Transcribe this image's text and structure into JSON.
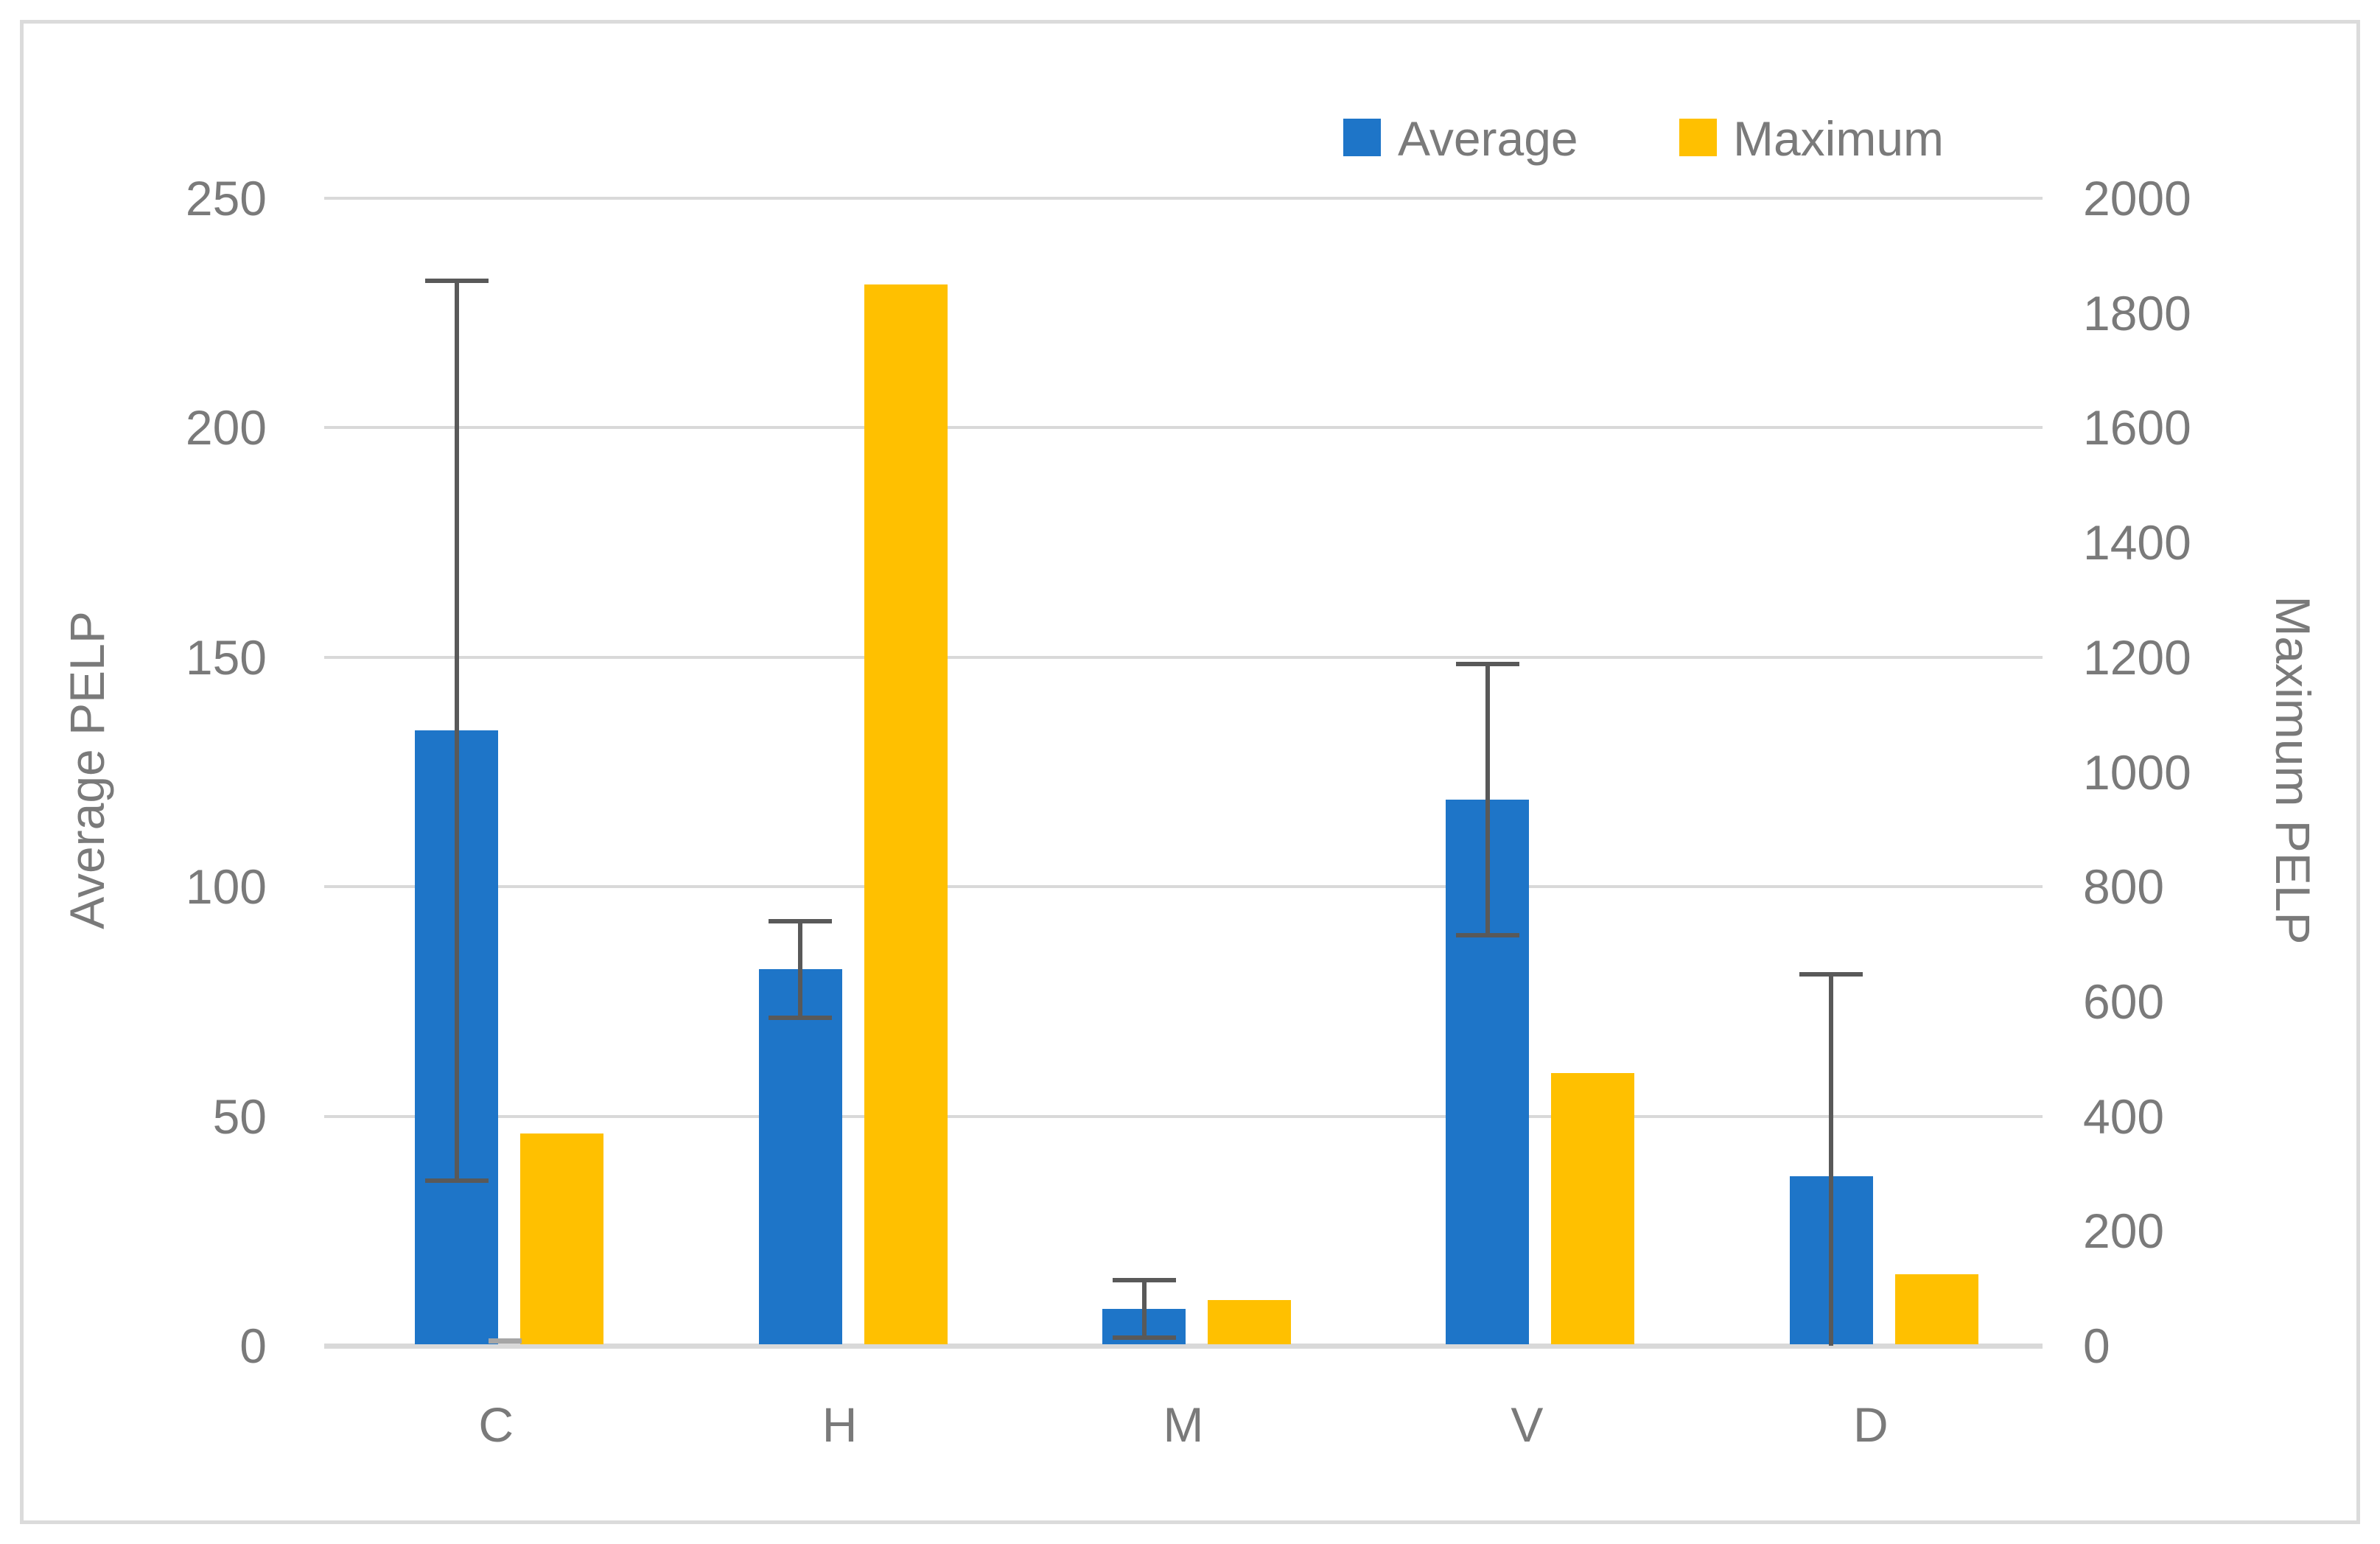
{
  "chart_data": {
    "type": "bar",
    "dual_axis": true,
    "categories": [
      "C",
      "H",
      "M",
      "V",
      "D"
    ],
    "series": [
      {
        "name": "Average",
        "axis": "left",
        "color": "#1E75C8",
        "values": [
          134,
          82,
          8,
          119,
          37
        ],
        "error_bars": {
          "color": "#595959",
          "upper": [
            232,
            92.5,
            14.3,
            148.5,
            81
          ],
          "lower": [
            36,
            71.5,
            1.7,
            89.5,
            0
          ],
          "lower_cap": [
            true,
            true,
            true,
            true,
            false
          ]
        }
      },
      {
        "name": "Maximum",
        "axis": "right",
        "color": "#FFC000",
        "values": [
          370,
          1850,
          80,
          475,
          125
        ]
      }
    ],
    "left_axis": {
      "title": "Average PELP",
      "min": 0,
      "max": 250,
      "step": 50,
      "tick_labels": [
        "0",
        "50",
        "100",
        "150",
        "200",
        "250"
      ]
    },
    "right_axis": {
      "title": "Maximum PELP",
      "min": 0,
      "max": 2000,
      "step": 200,
      "tick_labels": [
        "0",
        "200",
        "400",
        "600",
        "800",
        "1000",
        "1200",
        "1400",
        "1600",
        "1800",
        "2000"
      ]
    },
    "legend": {
      "position": "top-right",
      "entries": [
        {
          "label": "Average",
          "color": "#1E75C8"
        },
        {
          "label": "Maximum",
          "color": "#FFC000"
        }
      ]
    },
    "gridlines": {
      "color": "#D9D9D9",
      "every_left_units": 50,
      "baseline_color": "#D9D9D9"
    },
    "artifacts": [
      {
        "name": "tiny-gray-bar-at-C-base",
        "color": "#A6A6A6",
        "category_index": 0,
        "left_value": 1.1
      }
    ],
    "text_color": "#7A7A7A",
    "border_color": "#DBDBDB",
    "background": "#FFFFFF"
  }
}
